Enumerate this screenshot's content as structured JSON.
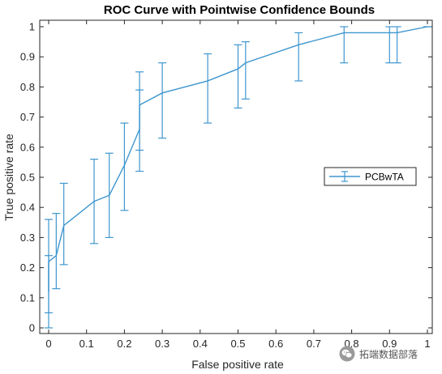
{
  "chart_data": {
    "type": "line",
    "title": "ROC Curve with Pointwise Confidence Bounds",
    "xlabel": "False positive rate",
    "ylabel": "True positive rate",
    "xlim": [
      0,
      1
    ],
    "ylim": [
      0,
      1
    ],
    "xticks": [
      "0",
      "0.1",
      "0.2",
      "0.3",
      "0.4",
      "0.5",
      "0.6",
      "0.7",
      "0.8",
      "0.9",
      "1"
    ],
    "yticks": [
      "0",
      "0.1",
      "0.2",
      "0.3",
      "0.4",
      "0.5",
      "0.6",
      "0.7",
      "0.8",
      "0.9",
      "1"
    ],
    "grid": false,
    "legend_position": "right",
    "color": "#3e96cf",
    "series": [
      {
        "name": "PCBwTA",
        "x": [
          0,
          0,
          0.02,
          0.04,
          0.12,
          0.16,
          0.2,
          0.24,
          0.24,
          0.3,
          0.42,
          0.5,
          0.52,
          0.66,
          0.78,
          0.9,
          0.92,
          1
        ],
        "y": [
          0.12,
          0.22,
          0.24,
          0.34,
          0.42,
          0.44,
          0.54,
          0.66,
          0.74,
          0.78,
          0.82,
          0.86,
          0.88,
          0.94,
          0.98,
          0.98,
          0.98,
          1
        ],
        "lower": [
          0.0,
          0.05,
          0.13,
          0.21,
          0.28,
          0.3,
          0.39,
          0.52,
          0.59,
          0.63,
          0.68,
          0.73,
          0.76,
          0.82,
          0.88,
          0.88,
          0.88,
          1
        ],
        "upper": [
          0.24,
          0.36,
          0.38,
          0.48,
          0.56,
          0.58,
          0.68,
          0.79,
          0.85,
          0.88,
          0.91,
          0.94,
          0.95,
          0.98,
          1.0,
          1.0,
          1.0,
          1
        ]
      }
    ]
  },
  "watermark": {
    "text": "拓端数据部落",
    "icon": "wechat-icon"
  }
}
